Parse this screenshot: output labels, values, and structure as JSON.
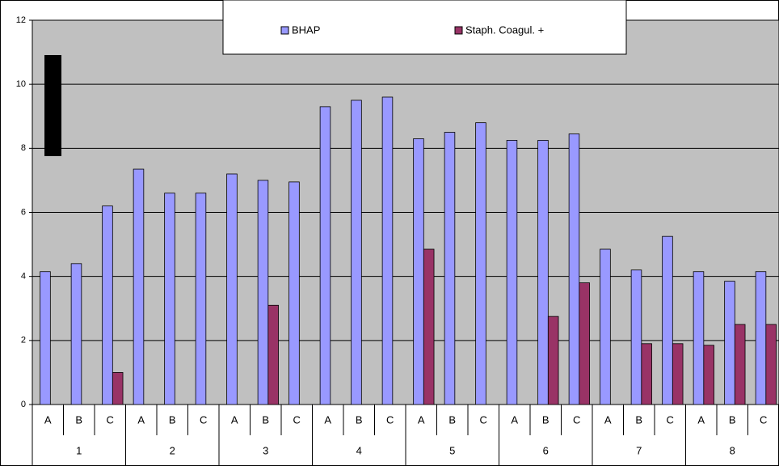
{
  "chart_data": {
    "type": "bar",
    "groups": [
      "1",
      "2",
      "3",
      "4",
      "5",
      "6",
      "7",
      "8"
    ],
    "categories": [
      "A",
      "B",
      "C",
      "A",
      "B",
      "C",
      "A",
      "B",
      "C",
      "A",
      "B",
      "C",
      "A",
      "B",
      "C",
      "A",
      "B",
      "C",
      "A",
      "B",
      "C",
      "A",
      "B",
      "C"
    ],
    "series": [
      {
        "name": "BHAP",
        "color": "#9999ff",
        "values": [
          4.15,
          4.4,
          6.2,
          7.35,
          6.6,
          6.6,
          7.2,
          7.0,
          6.95,
          9.3,
          9.5,
          9.6,
          8.3,
          8.5,
          8.8,
          8.25,
          8.25,
          8.45,
          4.85,
          4.2,
          5.25,
          4.15,
          3.85,
          4.15
        ]
      },
      {
        "name": "Staph. Coagul. +",
        "color": "#993366",
        "values": [
          null,
          null,
          1.0,
          null,
          null,
          null,
          null,
          3.1,
          null,
          null,
          null,
          null,
          4.85,
          null,
          null,
          null,
          2.75,
          3.8,
          null,
          1.9,
          1.9,
          1.85,
          2.5,
          2.5
        ]
      }
    ],
    "ylim": [
      0,
      12
    ],
    "yticks": [
      0,
      2,
      4,
      6,
      8,
      10,
      12
    ],
    "grid": true,
    "legend": "top"
  }
}
